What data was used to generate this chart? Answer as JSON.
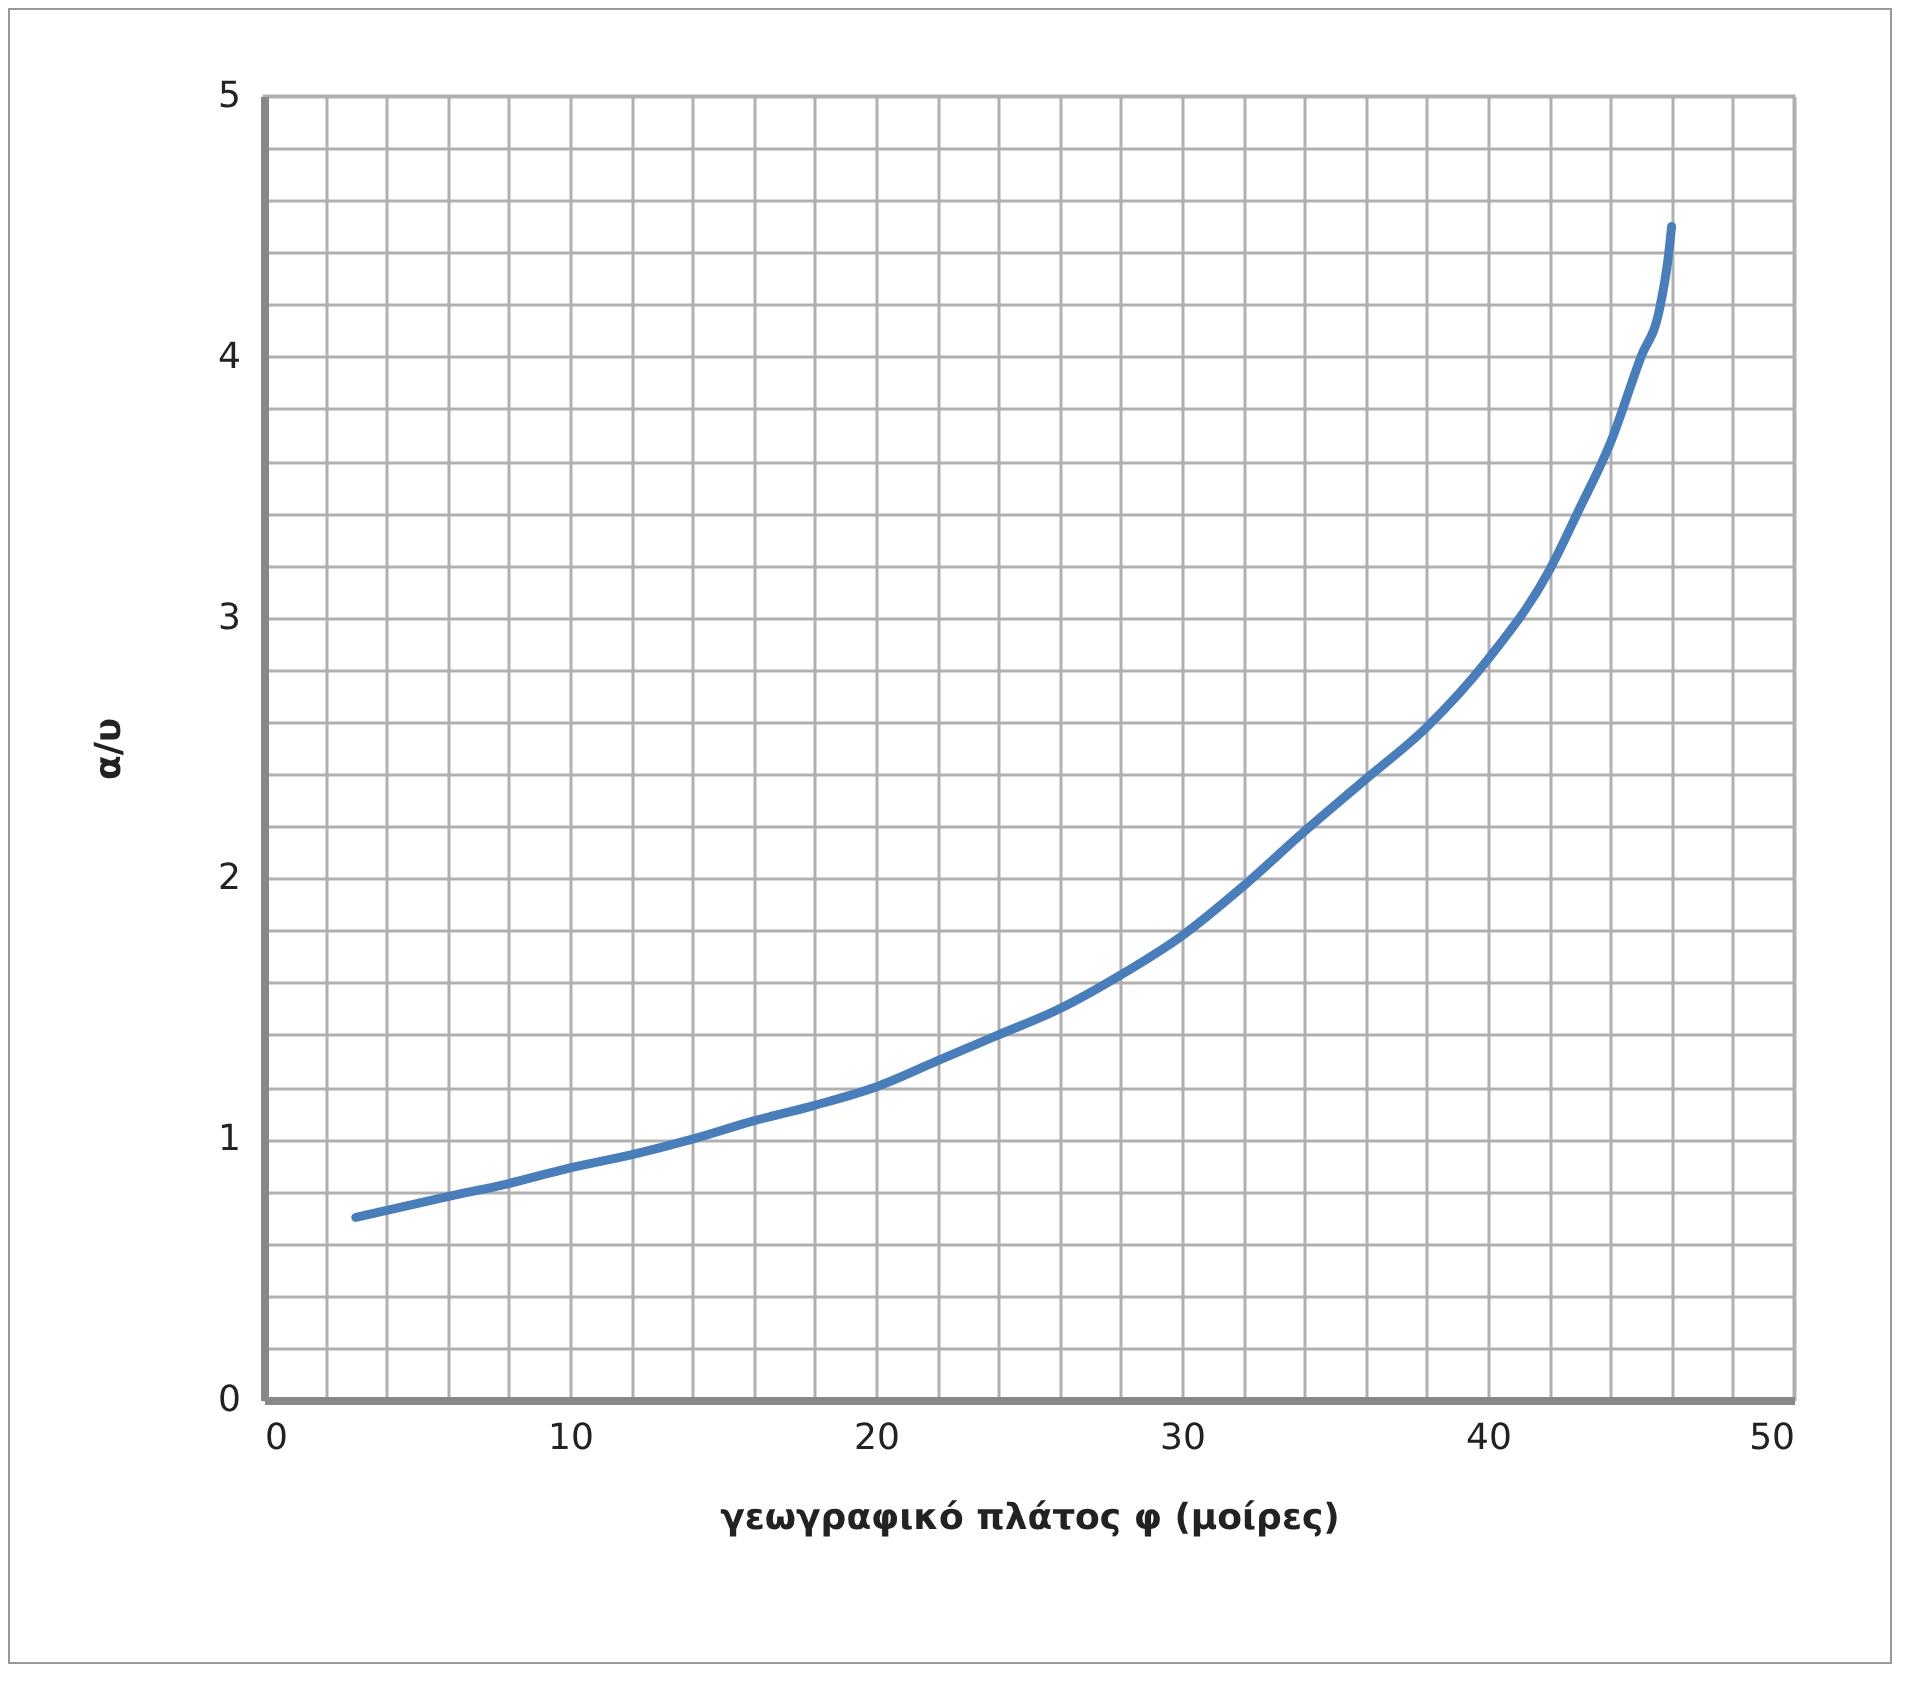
{
  "chart_data": {
    "type": "line",
    "xlabel": "γεωγραφικό πλάτος φ (μοίρες)",
    "ylabel": "α/υ",
    "x": [
      3,
      6,
      8,
      10,
      12,
      14,
      16,
      18,
      20,
      22,
      24,
      26,
      28,
      30,
      32,
      34,
      36,
      38,
      40,
      42,
      43,
      44,
      45,
      45.6,
      45.9,
      46
    ],
    "series": [
      {
        "color": "#4a7ebb",
        "values": [
          0.7,
          0.78,
          0.83,
          0.89,
          0.94,
          1.0,
          1.07,
          1.13,
          1.2,
          1.3,
          1.4,
          1.5,
          1.63,
          1.78,
          1.97,
          2.18,
          2.38,
          2.58,
          2.84,
          3.18,
          3.42,
          3.67,
          4.0,
          4.18,
          4.39,
          4.5
        ]
      }
    ],
    "xlim": [
      0,
      50
    ],
    "ylim": [
      0,
      5
    ],
    "xticks": [
      0,
      {
        "value": 2,
        "label": null
      },
      {
        "value": 4,
        "label": null
      },
      {
        "value": 6,
        "label": null
      },
      {
        "value": 8,
        "label": null
      },
      10,
      {
        "value": 12,
        "label": null
      },
      {
        "value": 14,
        "label": null
      },
      {
        "value": 16,
        "label": null
      },
      {
        "value": 18,
        "label": null
      },
      20,
      {
        "value": 22,
        "label": null
      },
      {
        "value": 24,
        "label": null
      },
      {
        "value": 26,
        "label": null
      },
      {
        "value": 28,
        "label": null
      },
      30,
      {
        "value": 32,
        "label": null
      },
      {
        "value": 34,
        "label": null
      },
      {
        "value": 36,
        "label": null
      },
      {
        "value": 38,
        "label": null
      },
      40,
      {
        "value": 42,
        "label": null
      },
      {
        "value": 44,
        "label": null
      },
      {
        "value": 46,
        "label": null
      },
      {
        "value": 48,
        "label": null
      },
      50
    ],
    "yticks": [
      0,
      {
        "value": 0.2,
        "label": null
      },
      {
        "value": 0.4,
        "label": null
      },
      {
        "value": 0.6,
        "label": null
      },
      {
        "value": 0.8,
        "label": null
      },
      1,
      {
        "value": 1.2,
        "label": null
      },
      {
        "value": 1.4,
        "label": null
      },
      {
        "value": 1.6,
        "label": null
      },
      {
        "value": 1.8,
        "label": null
      },
      2,
      {
        "value": 2.2,
        "label": null
      },
      {
        "value": 2.4,
        "label": null
      },
      {
        "value": 2.6,
        "label": null
      },
      {
        "value": 2.8,
        "label": null
      },
      3,
      {
        "value": 3.2,
        "label": null
      },
      {
        "value": 3.4,
        "label": null
      },
      {
        "value": 3.6,
        "label": null
      },
      {
        "value": 3.8,
        "label": null
      },
      4,
      {
        "value": 4.2,
        "label": null
      },
      {
        "value": 4.4,
        "label": null
      },
      {
        "value": 4.6,
        "label": null
      },
      {
        "value": 4.8,
        "label": null
      },
      5
    ],
    "grid": true,
    "line_style": "solid",
    "marker": "none"
  }
}
